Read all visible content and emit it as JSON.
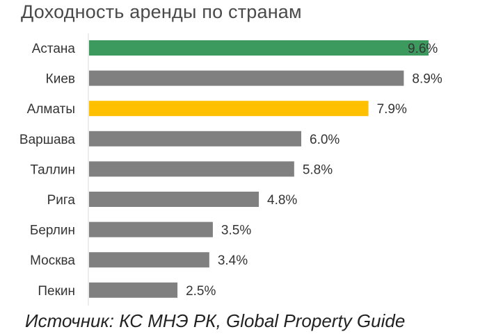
{
  "chart_data": {
    "type": "bar",
    "orientation": "horizontal",
    "title": "Доходность аренды по странам",
    "categories": [
      "Астана",
      "Киев",
      "Алматы",
      "Варшава",
      "Таллин",
      "Рига",
      "Берлин",
      "Москва",
      "Пекин"
    ],
    "values": [
      9.6,
      8.9,
      7.9,
      6.0,
      5.8,
      4.8,
      3.5,
      3.4,
      2.5
    ],
    "value_labels": [
      "9.6%",
      "8.9%",
      "7.9%",
      "6.0%",
      "5.8%",
      "4.8%",
      "3.5%",
      "3.4%",
      "2.5%"
    ],
    "colors": [
      "#3c9a5f",
      "#808080",
      "#ffc000",
      "#808080",
      "#808080",
      "#808080",
      "#808080",
      "#808080",
      "#808080"
    ],
    "xlim": [
      0,
      10
    ],
    "grid": false,
    "source": "Источник: КС МНЭ РК, Global Property Guide"
  }
}
